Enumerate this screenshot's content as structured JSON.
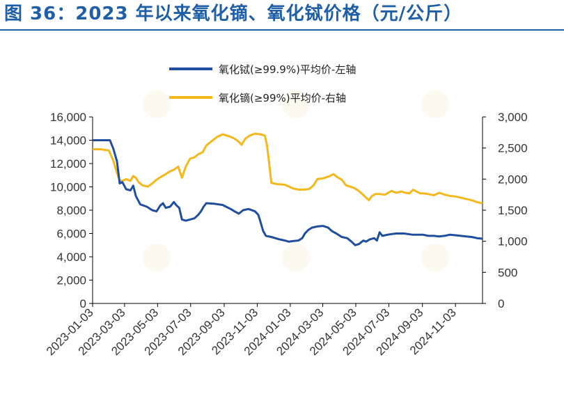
{
  "page_title": "图 36：2023 年以来氧化镝、氧化铽价格（元/公斤）",
  "colors": {
    "title": "#1f5fa8",
    "terbium": "#1f4e9e",
    "dysprosium": "#f5b81c",
    "axis": "#000000",
    "text": "#333333"
  },
  "chart_data": {
    "type": "line",
    "title": "2023 年以来氧化镝、氧化铽价格（元/公斤）",
    "xlabel": "",
    "x_range": [
      0,
      720
    ],
    "x_ticks": [
      {
        "label": "2023-01-03",
        "day": 0
      },
      {
        "label": "2023-03-03",
        "day": 59
      },
      {
        "label": "2023-05-03",
        "day": 120
      },
      {
        "label": "2023-07-03",
        "day": 181
      },
      {
        "label": "2023-09-03",
        "day": 243
      },
      {
        "label": "2023-11-03",
        "day": 304
      },
      {
        "label": "2024-01-03",
        "day": 365
      },
      {
        "label": "2024-03-03",
        "day": 425
      },
      {
        "label": "2024-05-03",
        "day": 486
      },
      {
        "label": "2024-07-03",
        "day": 547
      },
      {
        "label": "2024-09-03",
        "day": 609
      },
      {
        "label": "2024-11-03",
        "day": 670
      }
    ],
    "left_axis": {
      "ylim": [
        0,
        16000
      ],
      "ticks": [
        "0",
        "2,000",
        "4,000",
        "6,000",
        "8,000",
        "10,000",
        "12,000",
        "14,000",
        "16,000"
      ]
    },
    "right_axis": {
      "ylim": [
        0,
        3000
      ],
      "ticks": [
        "0",
        "500",
        "1,000",
        "1,500",
        "2,000",
        "2,500",
        "3,000"
      ]
    },
    "legend_position": "top",
    "series": [
      {
        "name": "氧化铽(≥99.9%)平均价-左轴",
        "axis": "left",
        "color": "#1f4e9e",
        "points": [
          [
            0,
            14000
          ],
          [
            32,
            14000
          ],
          [
            38,
            13300
          ],
          [
            45,
            12200
          ],
          [
            50,
            10300
          ],
          [
            55,
            10400
          ],
          [
            62,
            9800
          ],
          [
            70,
            9700
          ],
          [
            75,
            10100
          ],
          [
            80,
            9200
          ],
          [
            88,
            8500
          ],
          [
            100,
            8300
          ],
          [
            110,
            8000
          ],
          [
            118,
            7900
          ],
          [
            125,
            8400
          ],
          [
            130,
            8600
          ],
          [
            135,
            8200
          ],
          [
            143,
            8300
          ],
          [
            150,
            8700
          ],
          [
            155,
            8400
          ],
          [
            160,
            8200
          ],
          [
            165,
            7200
          ],
          [
            172,
            7100
          ],
          [
            180,
            7200
          ],
          [
            188,
            7300
          ],
          [
            195,
            7600
          ],
          [
            200,
            7900
          ],
          [
            205,
            8300
          ],
          [
            210,
            8600
          ],
          [
            225,
            8550
          ],
          [
            240,
            8450
          ],
          [
            255,
            8100
          ],
          [
            262,
            7900
          ],
          [
            270,
            7700
          ],
          [
            278,
            8000
          ],
          [
            288,
            8100
          ],
          [
            300,
            7900
          ],
          [
            306,
            7600
          ],
          [
            310,
            7000
          ],
          [
            315,
            6200
          ],
          [
            320,
            5800
          ],
          [
            330,
            5700
          ],
          [
            345,
            5500
          ],
          [
            355,
            5400
          ],
          [
            362,
            5300
          ],
          [
            370,
            5350
          ],
          [
            380,
            5400
          ],
          [
            387,
            5600
          ],
          [
            392,
            6000
          ],
          [
            398,
            6300
          ],
          [
            405,
            6500
          ],
          [
            415,
            6600
          ],
          [
            425,
            6650
          ],
          [
            435,
            6500
          ],
          [
            442,
            6200
          ],
          [
            450,
            6000
          ],
          [
            460,
            5700
          ],
          [
            470,
            5600
          ],
          [
            478,
            5300
          ],
          [
            485,
            5000
          ],
          [
            492,
            5100
          ],
          [
            500,
            5400
          ],
          [
            505,
            5300
          ],
          [
            512,
            5500
          ],
          [
            520,
            5600
          ],
          [
            525,
            5400
          ],
          [
            530,
            6100
          ],
          [
            535,
            5800
          ],
          [
            545,
            5900
          ],
          [
            560,
            6000
          ],
          [
            575,
            6000
          ],
          [
            590,
            5900
          ],
          [
            600,
            5900
          ],
          [
            610,
            5900
          ],
          [
            620,
            5800
          ],
          [
            630,
            5800
          ],
          [
            640,
            5750
          ],
          [
            650,
            5800
          ],
          [
            660,
            5900
          ],
          [
            670,
            5850
          ],
          [
            680,
            5800
          ],
          [
            690,
            5750
          ],
          [
            700,
            5700
          ],
          [
            710,
            5600
          ],
          [
            720,
            5550
          ]
        ]
      },
      {
        "name": "氧化镝(≥99%)平均价-右轴",
        "axis": "right",
        "color": "#f5b81c",
        "points": [
          [
            0,
            2480
          ],
          [
            15,
            2480
          ],
          [
            30,
            2460
          ],
          [
            38,
            2300
          ],
          [
            45,
            2100
          ],
          [
            50,
            1980
          ],
          [
            55,
            1970
          ],
          [
            62,
            2000
          ],
          [
            70,
            1970
          ],
          [
            75,
            2050
          ],
          [
            80,
            2020
          ],
          [
            85,
            1950
          ],
          [
            92,
            1900
          ],
          [
            102,
            1880
          ],
          [
            110,
            1930
          ],
          [
            118,
            1990
          ],
          [
            125,
            2030
          ],
          [
            135,
            2080
          ],
          [
            142,
            2120
          ],
          [
            150,
            2150
          ],
          [
            158,
            2200
          ],
          [
            165,
            2020
          ],
          [
            172,
            2200
          ],
          [
            180,
            2330
          ],
          [
            188,
            2350
          ],
          [
            195,
            2400
          ],
          [
            203,
            2430
          ],
          [
            210,
            2540
          ],
          [
            220,
            2610
          ],
          [
            230,
            2680
          ],
          [
            240,
            2720
          ],
          [
            248,
            2700
          ],
          [
            255,
            2680
          ],
          [
            262,
            2650
          ],
          [
            270,
            2600
          ],
          [
            275,
            2550
          ],
          [
            282,
            2650
          ],
          [
            290,
            2700
          ],
          [
            300,
            2730
          ],
          [
            310,
            2720
          ],
          [
            318,
            2700
          ],
          [
            322,
            2550
          ],
          [
            326,
            2250
          ],
          [
            330,
            1940
          ],
          [
            340,
            1920
          ],
          [
            355,
            1910
          ],
          [
            370,
            1850
          ],
          [
            380,
            1830
          ],
          [
            390,
            1830
          ],
          [
            400,
            1840
          ],
          [
            408,
            1900
          ],
          [
            415,
            2000
          ],
          [
            425,
            2010
          ],
          [
            438,
            2050
          ],
          [
            445,
            2080
          ],
          [
            452,
            2030
          ],
          [
            460,
            1990
          ],
          [
            468,
            1900
          ],
          [
            475,
            1880
          ],
          [
            482,
            1860
          ],
          [
            490,
            1820
          ],
          [
            498,
            1760
          ],
          [
            505,
            1700
          ],
          [
            510,
            1660
          ],
          [
            515,
            1720
          ],
          [
            522,
            1760
          ],
          [
            530,
            1760
          ],
          [
            540,
            1750
          ],
          [
            548,
            1790
          ],
          [
            552,
            1810
          ],
          [
            560,
            1780
          ],
          [
            570,
            1800
          ],
          [
            578,
            1780
          ],
          [
            585,
            1770
          ],
          [
            592,
            1830
          ],
          [
            598,
            1800
          ],
          [
            605,
            1770
          ],
          [
            612,
            1770
          ],
          [
            620,
            1760
          ],
          [
            630,
            1740
          ],
          [
            640,
            1780
          ],
          [
            650,
            1750
          ],
          [
            660,
            1730
          ],
          [
            670,
            1720
          ],
          [
            680,
            1700
          ],
          [
            690,
            1680
          ],
          [
            700,
            1660
          ],
          [
            710,
            1630
          ],
          [
            720,
            1610
          ]
        ]
      }
    ]
  }
}
